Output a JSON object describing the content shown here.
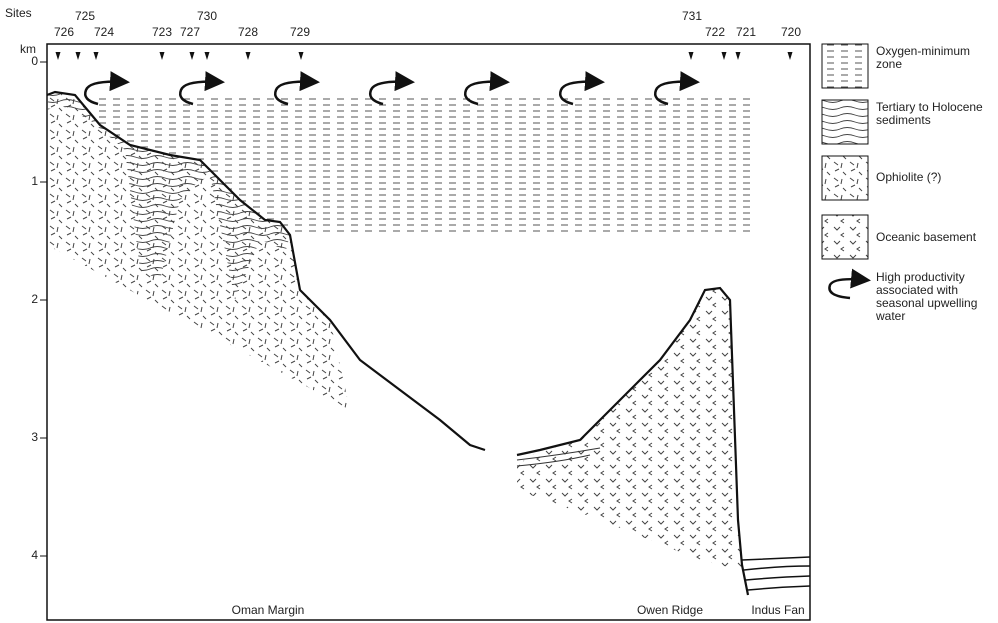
{
  "header": {
    "sites_label": "Sites",
    "depth_unit": "km"
  },
  "sites": [
    "725",
    "730",
    "731",
    "726",
    "724",
    "723",
    "727",
    "728",
    "729",
    "722",
    "721",
    "720"
  ],
  "depth_ticks": [
    0,
    1,
    2,
    3,
    4
  ],
  "legend": [
    {
      "lines": [
        "Oxygen-minimum",
        "zone"
      ]
    },
    {
      "lines": [
        "Tertiary to Holocene",
        "sediments"
      ]
    },
    {
      "lines": [
        "Ophiolite (?)"
      ]
    },
    {
      "lines": [
        "Oceanic basement"
      ]
    },
    {
      "lines": [
        "High productivity",
        "associated with",
        "seasonal upwelling",
        "water"
      ]
    }
  ],
  "regions": [
    "Oman Margin",
    "Owen Ridge",
    "Indus Fan"
  ]
}
